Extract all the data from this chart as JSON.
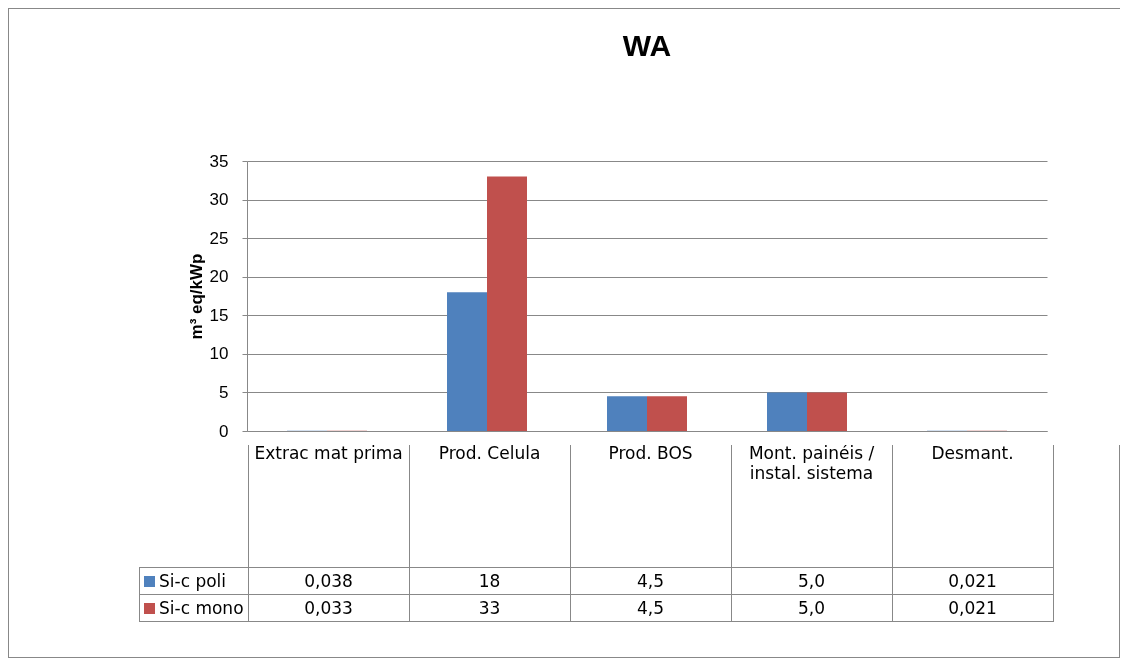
{
  "chart_data": {
    "type": "bar",
    "title": "WA",
    "ylabel": "m³ eq/kWp",
    "categories": [
      "Extrac mat prima",
      "Prod. Celula",
      "Prod. BOS",
      "Mont. painéis / instal. sistema",
      "Desmant."
    ],
    "series": [
      {
        "name": "Si-c poli",
        "color": "#4f81bd",
        "values": [
          0.038,
          18,
          4.5,
          5.0,
          0.021
        ],
        "value_labels": [
          "0,038",
          "18",
          "4,5",
          "5,0",
          "0,021"
        ]
      },
      {
        "name": "Si-c mono",
        "color": "#c0504d",
        "values": [
          0.033,
          33,
          4.5,
          5.0,
          0.021
        ],
        "value_labels": [
          "0,033",
          "33",
          "4,5",
          "5,0",
          "0,021"
        ]
      }
    ],
    "ylim": [
      0,
      35
    ],
    "yticks": [
      0,
      5,
      10,
      15,
      20,
      25,
      30,
      35
    ],
    "grid": "y",
    "legend": "bottom"
  }
}
